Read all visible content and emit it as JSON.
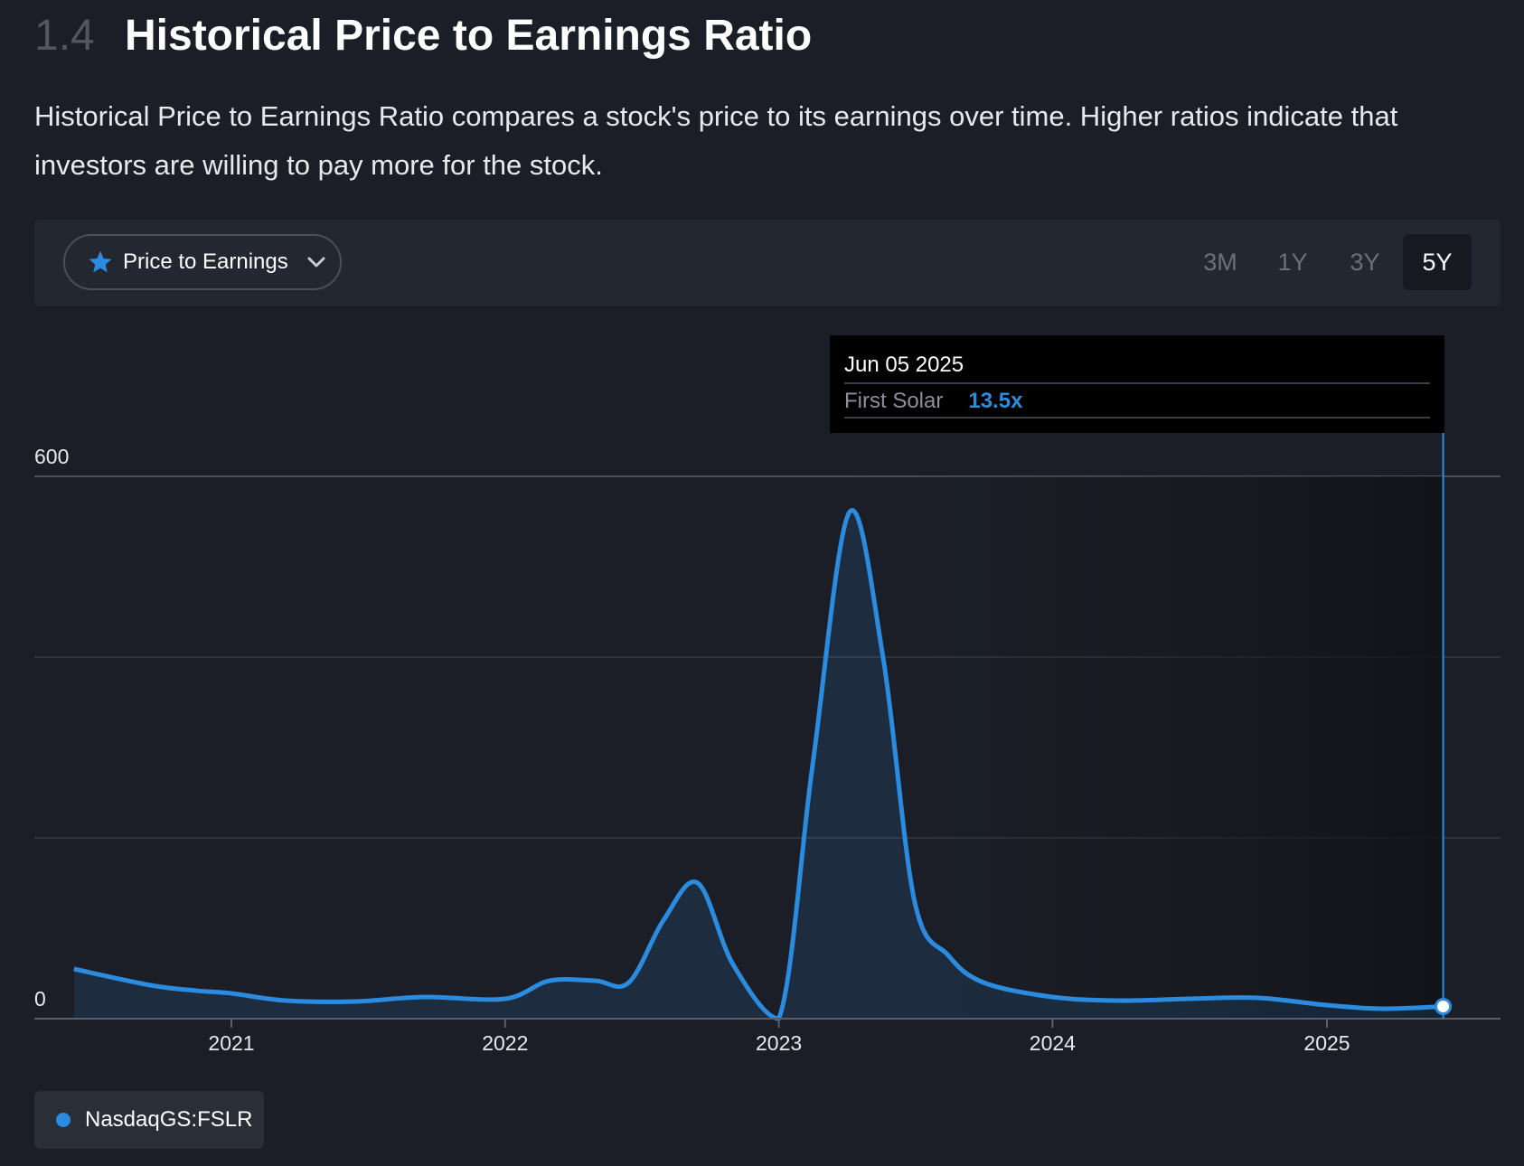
{
  "section": {
    "number": "1.4",
    "title": "Historical Price to Earnings Ratio",
    "description": "Historical Price to Earnings Ratio compares a stock's price to its earnings over time. Higher ratios indicate that investors are willing to pay more for the stock."
  },
  "toolbar": {
    "metric_label": "Price to Earnings",
    "ranges": [
      "3M",
      "1Y",
      "3Y",
      "5Y"
    ],
    "active_range": "5Y"
  },
  "tooltip": {
    "date": "Jun 05 2025",
    "series_name": "First Solar",
    "value": "13.5x"
  },
  "legend": {
    "label": "NasdaqGS:FSLR"
  },
  "colors": {
    "accent": "#2b8cdf",
    "background": "#1b1e26"
  },
  "chart_data": {
    "type": "area",
    "title": "",
    "xlabel": "",
    "ylabel": "",
    "ylim": [
      0,
      600
    ],
    "y_tick_labels": [
      "0",
      "600"
    ],
    "x_tick_labels": [
      "2021",
      "2022",
      "2023",
      "2024",
      "2025"
    ],
    "grid": true,
    "series": [
      {
        "name": "NasdaqGS:FSLR",
        "x": [
          "2020-06-05",
          "2020-09-15",
          "2020-11-15",
          "2021-01-01",
          "2021-03-15",
          "2021-06-15",
          "2021-09-15",
          "2022-01-01",
          "2022-03-01",
          "2022-05-01",
          "2022-06-15",
          "2022-08-01",
          "2022-09-15",
          "2022-11-01",
          "2023-01-01",
          "2023-02-15",
          "2023-04-05",
          "2023-05-20",
          "2023-07-01",
          "2023-08-15",
          "2023-10-01",
          "2024-01-01",
          "2024-04-01",
          "2024-07-01",
          "2024-10-01",
          "2025-01-01",
          "2025-03-15",
          "2025-06-05"
        ],
        "y": [
          55,
          37,
          31,
          28,
          20,
          19,
          24,
          22,
          42,
          42,
          40,
          110,
          150,
          60,
          0,
          280,
          560,
          400,
          130,
          70,
          40,
          24,
          20,
          22,
          23,
          15,
          11,
          13.5
        ]
      }
    ],
    "highlight": {
      "x": "2025-06-05",
      "y": 13.5
    }
  }
}
